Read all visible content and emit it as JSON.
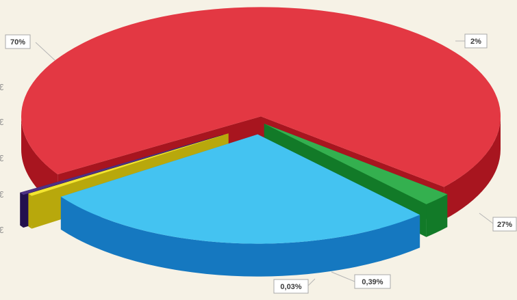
{
  "chart_data": {
    "type": "pie",
    "style": "3d-exploded",
    "title": "",
    "slices": [
      {
        "label": "70%",
        "value": 70,
        "color": "#e0222e",
        "side": "#a8151f"
      },
      {
        "label": "2%",
        "value": 2,
        "color": "#1ea83c",
        "side": "#127a28"
      },
      {
        "label": "27%",
        "value": 27,
        "color": "#2fbdf0",
        "side": "#1578c0"
      },
      {
        "label": "0,39%",
        "value": 0.39,
        "color": "#f2e21a",
        "side": "#b8a80c"
      },
      {
        "label": "0,03%",
        "value": 0.03,
        "color": "#3a1a78",
        "side": "#22104e"
      }
    ],
    "legend": "none",
    "background": "#f6f2e6"
  }
}
